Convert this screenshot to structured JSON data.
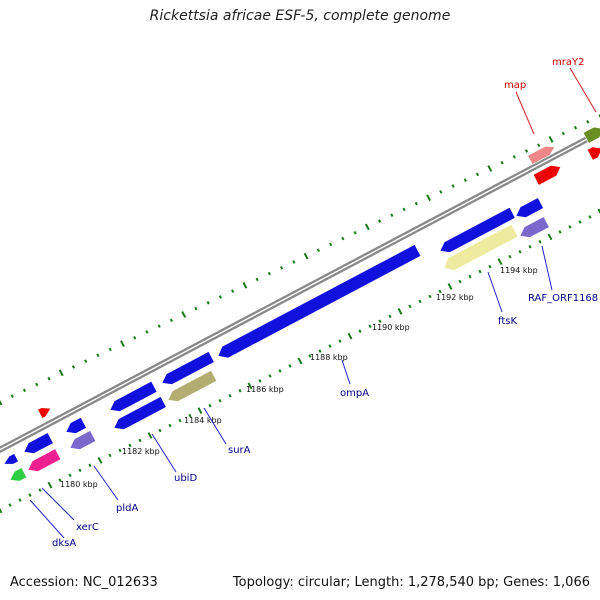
{
  "title": "Rickettsia africae ESF-5, complete genome",
  "accession": "Accession: NC_012633",
  "summary": "Topology: circular; Length: 1,278,540 bp; Genes: 1,066",
  "scale_labels": [
    "1180 kbp",
    "1182 kbp",
    "1184 kbp",
    "1186 kbp",
    "1188 kbp",
    "1190 kbp",
    "1192 kbp",
    "1194 kbp"
  ],
  "genes": [
    {
      "name": "dksA",
      "strand": "reverse",
      "color": "#2ecc40"
    },
    {
      "name": "xerC",
      "strand": "reverse",
      "color": "#ee1f8f"
    },
    {
      "name": "pldA",
      "strand": "reverse",
      "color": "#7b68cc"
    },
    {
      "name": "ubiD",
      "strand": "reverse",
      "color": "#1111dd"
    },
    {
      "name": "surA",
      "strand": "reverse",
      "color": "#b3ad72"
    },
    {
      "name": "ompA",
      "strand": "reverse",
      "color": "#1111dd"
    },
    {
      "name": "ftsK",
      "strand": "reverse",
      "color": "#eeea9e"
    },
    {
      "name": "RAF_ORF1168",
      "strand": "reverse",
      "color": "#7b68cc"
    },
    {
      "name": "map",
      "strand": "forward",
      "color": "#ee8888"
    },
    {
      "name": "mraY2",
      "strand": "forward",
      "color": "#6b8e23"
    }
  ],
  "colors": {
    "backbone": "#888888",
    "ticks": "#1a7a1a",
    "blue_gene": "#1111dd",
    "forward_label": "#cc0000",
    "reverse_label": "#000088",
    "red_gene": "#ee0000"
  }
}
